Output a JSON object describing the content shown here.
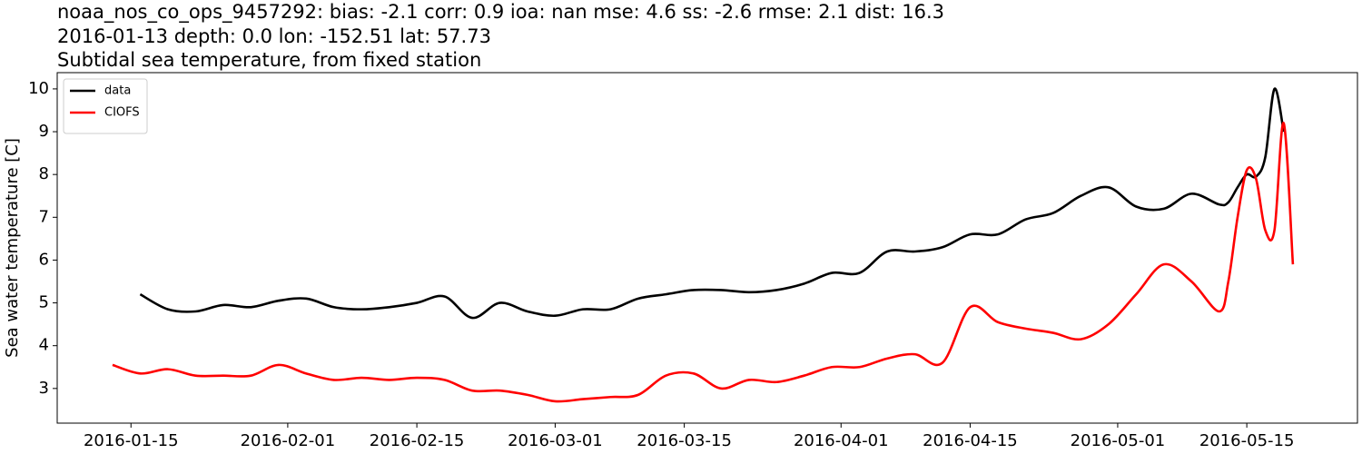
{
  "chart_data": {
    "type": "line",
    "title": "noaa_nos_co_ops_9457292: bias: -2.1  corr: 0.9  ioa: nan  mse: 4.6  ss: -2.6  rmse: 2.1  dist: 16.3",
    "subtitle": "2016-01-13 depth: 0.0 lon: -152.51 lat: 57.73",
    "description": "Subtidal sea temperature, from fixed station",
    "ylabel": "Sea water temperature [C]",
    "x": [
      "2016-01-13",
      "2016-01-16",
      "2016-01-19",
      "2016-01-22",
      "2016-01-25",
      "2016-01-28",
      "2016-01-31",
      "2016-02-03",
      "2016-02-06",
      "2016-02-09",
      "2016-02-12",
      "2016-02-15",
      "2016-02-18",
      "2016-02-21",
      "2016-02-24",
      "2016-02-27",
      "2016-03-01",
      "2016-03-04",
      "2016-03-07",
      "2016-03-10",
      "2016-03-13",
      "2016-03-16",
      "2016-03-19",
      "2016-03-22",
      "2016-03-25",
      "2016-03-28",
      "2016-03-31",
      "2016-04-03",
      "2016-04-06",
      "2016-04-09",
      "2016-04-12",
      "2016-04-15",
      "2016-04-18",
      "2016-04-21",
      "2016-04-24",
      "2016-04-27",
      "2016-04-30",
      "2016-05-03",
      "2016-05-06",
      "2016-05-09",
      "2016-05-12",
      "2016-05-13",
      "2016-05-14",
      "2016-05-15",
      "2016-05-16",
      "2016-05-17",
      "2016-05-18",
      "2016-05-19",
      "2016-05-20"
    ],
    "series": [
      {
        "name": "data",
        "color": "#000000",
        "values": [
          null,
          5.2,
          4.85,
          4.8,
          4.95,
          4.9,
          5.05,
          5.1,
          4.9,
          4.85,
          4.9,
          5.0,
          5.15,
          4.65,
          5.0,
          4.8,
          4.7,
          4.85,
          4.85,
          5.1,
          5.2,
          5.3,
          5.3,
          5.25,
          5.3,
          5.45,
          5.7,
          5.7,
          6.2,
          6.2,
          6.3,
          6.6,
          6.6,
          6.95,
          7.1,
          7.5,
          7.7,
          7.25,
          7.2,
          7.55,
          7.3,
          7.35,
          7.7,
          8.0,
          7.95,
          8.4,
          10.0,
          9.0,
          null
        ]
      },
      {
        "name": "CIOFS",
        "color": "#ff0000",
        "values": [
          3.55,
          3.35,
          3.45,
          3.3,
          3.3,
          3.3,
          3.55,
          3.35,
          3.2,
          3.25,
          3.2,
          3.25,
          3.2,
          2.95,
          2.95,
          2.85,
          2.7,
          2.75,
          2.8,
          2.85,
          3.3,
          3.35,
          3.0,
          3.2,
          3.15,
          3.3,
          3.5,
          3.5,
          3.7,
          3.8,
          3.6,
          4.9,
          4.55,
          4.4,
          4.3,
          4.15,
          4.5,
          5.2,
          5.9,
          5.5,
          4.8,
          5.5,
          7.0,
          8.1,
          7.9,
          6.7,
          6.7,
          9.2,
          5.9
        ]
      }
    ],
    "xlim": [
      "2016-01-07",
      "2016-05-27"
    ],
    "xticks": [
      "2016-01-15",
      "2016-02-01",
      "2016-02-15",
      "2016-03-01",
      "2016-03-15",
      "2016-04-01",
      "2016-04-15",
      "2016-05-01",
      "2016-05-15"
    ],
    "ylim": [
      2.19,
      10.38
    ],
    "yticks": [
      3,
      4,
      5,
      6,
      7,
      8,
      9,
      10
    ],
    "legend": "upper left"
  }
}
